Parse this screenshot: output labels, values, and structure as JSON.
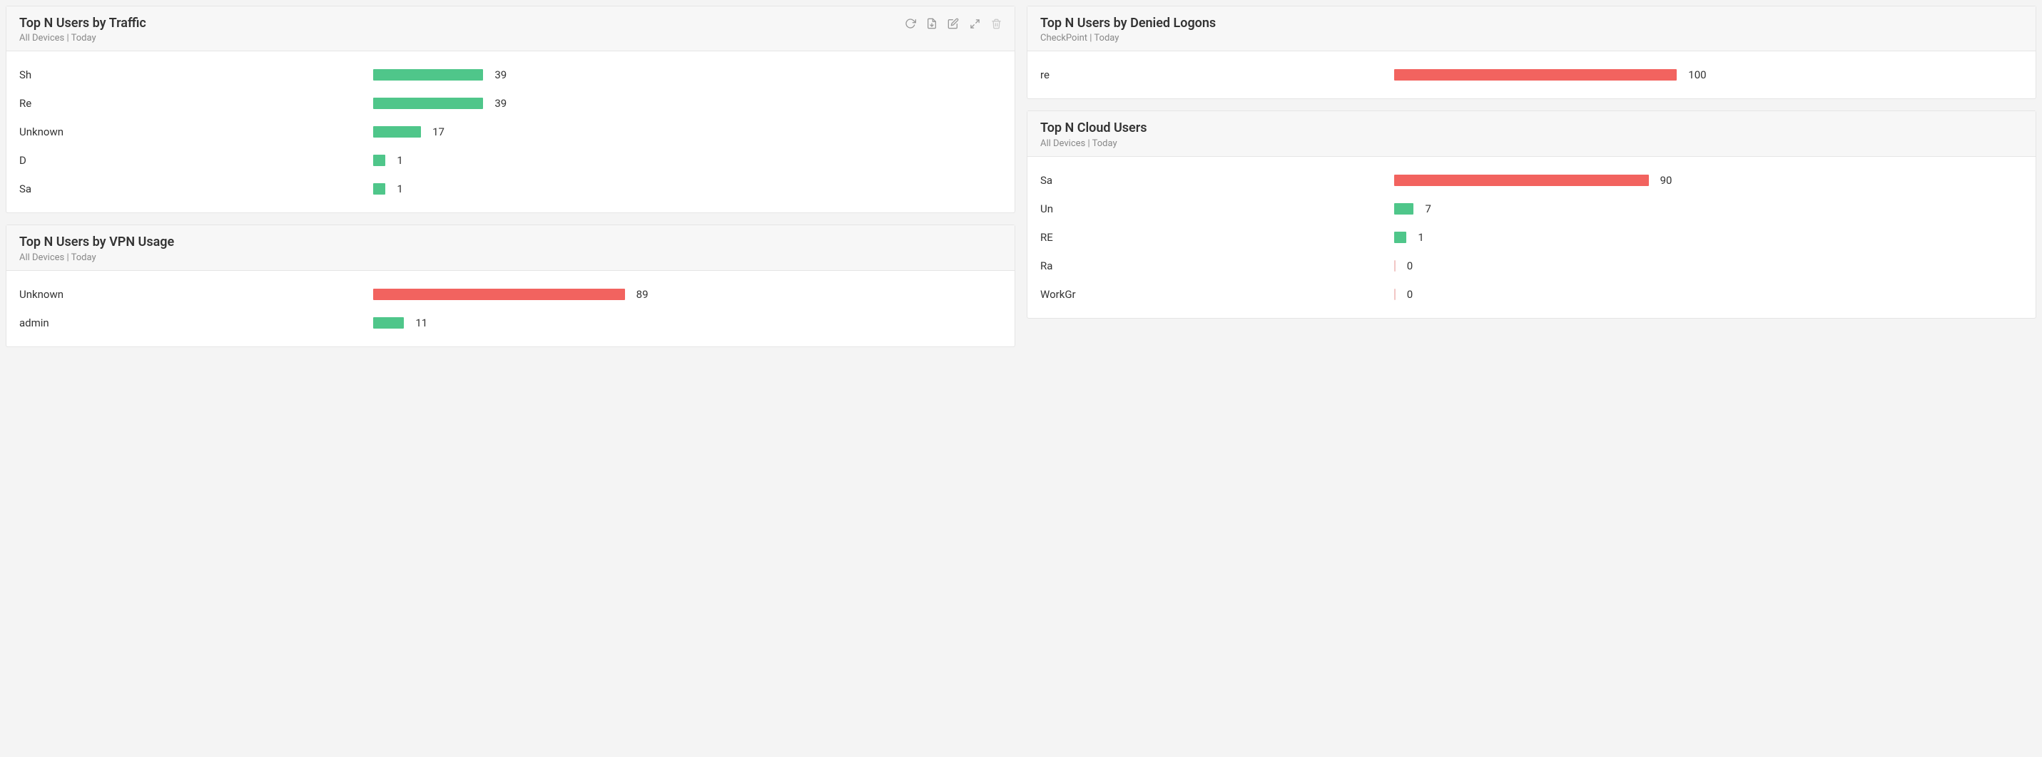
{
  "colors": {
    "green": "#4fc68a",
    "red": "#f2635f",
    "faint": "#f2c6c5"
  },
  "panels": {
    "traffic": {
      "title": "Top N Users by Traffic",
      "subtitle": "All Devices | Today",
      "show_actions": true,
      "max_value": 100,
      "rows": [
        {
          "label": "Sh",
          "value": 39,
          "color": "green"
        },
        {
          "label": "Re",
          "value": 39,
          "color": "green"
        },
        {
          "label": "Unknown",
          "value": 17,
          "color": "green"
        },
        {
          "label": "D",
          "value": 1,
          "color": "green"
        },
        {
          "label": "Sa",
          "value": 1,
          "color": "green"
        }
      ]
    },
    "vpn": {
      "title": "Top N Users by VPN Usage",
      "subtitle": "All Devices | Today",
      "show_actions": false,
      "max_value": 100,
      "rows": [
        {
          "label": "Unknown",
          "value": 89,
          "color": "red"
        },
        {
          "label": "admin",
          "value": 11,
          "color": "green"
        }
      ]
    },
    "denied": {
      "title": "Top N Users by Denied Logons",
      "subtitle": "CheckPoint | Today",
      "show_actions": false,
      "max_value": 100,
      "rows": [
        {
          "label": "re",
          "value": 100,
          "color": "red"
        }
      ]
    },
    "cloud": {
      "title": "Top N Cloud Users",
      "subtitle": "All Devices | Today",
      "show_actions": false,
      "max_value": 100,
      "rows": [
        {
          "label": "Sa",
          "value": 90,
          "color": "red"
        },
        {
          "label": "Un",
          "value": 7,
          "color": "green"
        },
        {
          "label": "RE",
          "value": 1,
          "color": "green"
        },
        {
          "label": "Ra",
          "value": 0,
          "color": "faint"
        },
        {
          "label": "WorkGr",
          "value": 0,
          "color": "faint"
        }
      ]
    }
  }
}
